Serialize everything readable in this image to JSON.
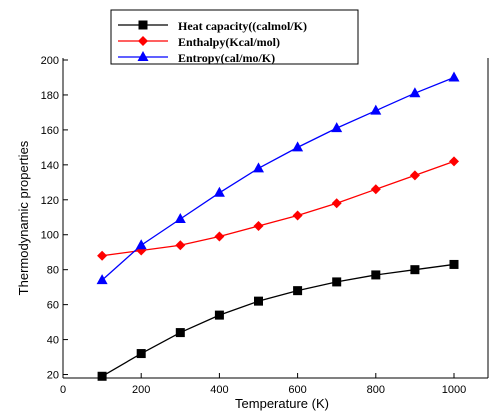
{
  "chart_data": {
    "type": "line",
    "title": "",
    "xlabel": "Temperature (K)",
    "ylabel": "Thermodynamic properties",
    "xlim": [
      0,
      1000
    ],
    "ylim": [
      10,
      200
    ],
    "xticks": [
      0,
      200,
      400,
      600,
      800,
      1000
    ],
    "yticks": [
      20,
      40,
      60,
      80,
      100,
      120,
      140,
      160,
      180,
      200
    ],
    "grid": false,
    "legend_position": "top-center",
    "x": [
      100,
      200,
      300,
      400,
      500,
      600,
      700,
      800,
      900,
      1000
    ],
    "series": [
      {
        "name": "Heat capacity((calmol/K)",
        "color": "#000000",
        "marker": "square",
        "values": [
          19,
          32,
          44,
          54,
          62,
          68,
          73,
          77,
          80,
          83
        ]
      },
      {
        "name": "Enthalpy(Kcal/mol)",
        "color": "#ff0000",
        "marker": "diamond",
        "values": [
          88,
          91,
          94,
          99,
          105,
          111,
          118,
          126,
          134,
          142
        ]
      },
      {
        "name": "Entropy(cal/mo/K)",
        "color": "#0000ff",
        "marker": "triangle",
        "values": [
          74,
          94,
          109,
          124,
          138,
          150,
          161,
          171,
          181,
          190
        ]
      }
    ]
  }
}
